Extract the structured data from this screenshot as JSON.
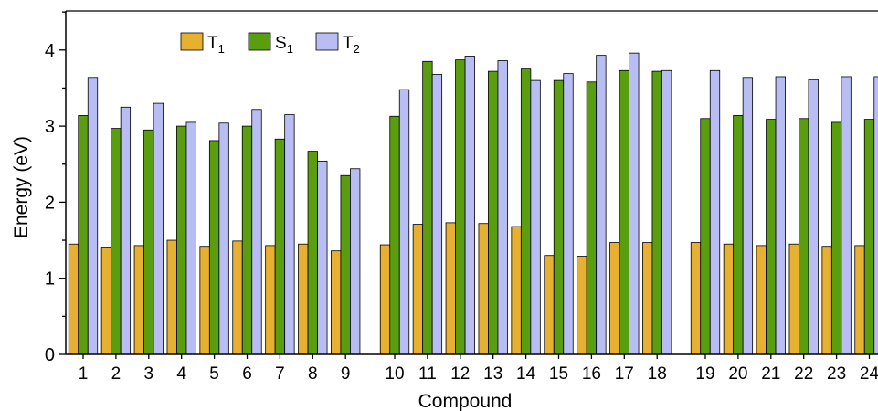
{
  "chart_data": {
    "type": "bar",
    "title": "",
    "xlabel": "Compound",
    "ylabel": "Energy (eV)",
    "ylim": [
      0,
      4.5
    ],
    "yticks": [
      0,
      1,
      2,
      3,
      4
    ],
    "legend_position": "top-left",
    "categories": [
      "1",
      "2",
      "3",
      "4",
      "5",
      "6",
      "7",
      "8",
      "9",
      "10",
      "11",
      "12",
      "13",
      "14",
      "15",
      "16",
      "17",
      "18",
      "19",
      "20",
      "21",
      "22",
      "23",
      "24"
    ],
    "series": [
      {
        "name": "T",
        "sub": "1",
        "color": "#E8B030",
        "values": [
          1.45,
          1.41,
          1.43,
          1.5,
          1.42,
          1.49,
          1.43,
          1.45,
          1.36,
          1.44,
          1.71,
          1.73,
          1.72,
          1.68,
          1.3,
          1.29,
          1.47,
          1.47,
          1.47,
          1.45,
          1.43,
          1.45,
          1.42,
          1.43
        ]
      },
      {
        "name": "S",
        "sub": "1",
        "color": "#5A9E10",
        "values": [
          3.14,
          2.97,
          2.95,
          3.0,
          2.81,
          3.0,
          2.83,
          2.67,
          2.35,
          3.13,
          3.85,
          3.87,
          3.72,
          3.75,
          3.6,
          3.58,
          3.73,
          3.72,
          3.1,
          3.14,
          3.09,
          3.1,
          3.05,
          3.09
        ]
      },
      {
        "name": "T",
        "sub": "2",
        "color": "#B8BEF4",
        "values": [
          3.64,
          3.25,
          3.3,
          3.05,
          3.04,
          3.22,
          3.15,
          2.54,
          2.44,
          3.48,
          3.68,
          3.92,
          3.86,
          3.6,
          3.69,
          3.93,
          3.96,
          3.73,
          3.73,
          3.64,
          3.65,
          3.61,
          3.65,
          3.65
        ]
      }
    ]
  }
}
